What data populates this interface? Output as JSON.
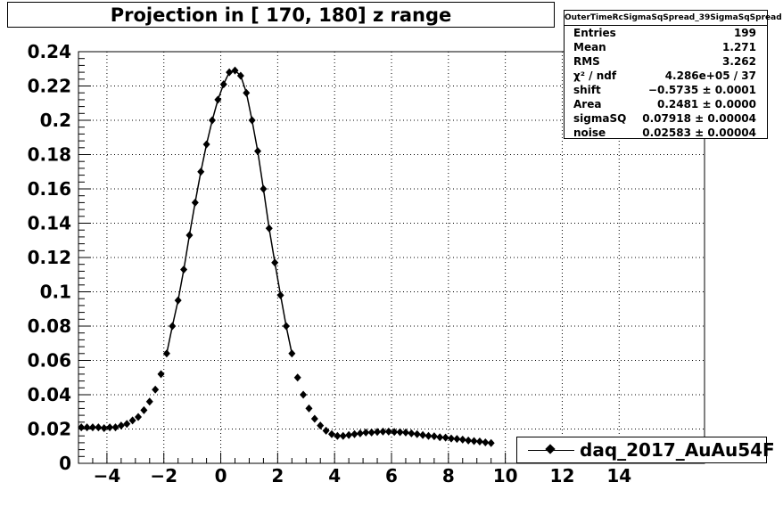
{
  "title": "Projection in [ 170, 180] z range",
  "stats": {
    "name": "OuterTimeRcSigmaSqSpread_39SigmaSqSpread",
    "rows": [
      {
        "label": "Entries",
        "value": "199"
      },
      {
        "label": "Mean",
        "value": "1.271"
      },
      {
        "label": "RMS",
        "value": "3.262"
      },
      {
        "label": "χ² / ndf",
        "value": "4.286e+05 / 37"
      },
      {
        "label": "shift",
        "value": "−0.5735 ± 0.0001"
      },
      {
        "label": "Area",
        "value": "0.2481 ± 0.0000"
      },
      {
        "label": "sigmaSQ",
        "value": "0.07918 ± 0.00004"
      },
      {
        "label": "noise",
        "value": "0.02583 ± 0.00004"
      }
    ]
  },
  "legend": {
    "label": "daq_2017_AuAu54F"
  },
  "chart_data": {
    "type": "scatter",
    "xlim": [
      -5,
      17
    ],
    "ylim": [
      0,
      0.24
    ],
    "x_ticks": [
      "−4",
      "−2",
      "0",
      "2",
      "4",
      "6",
      "8",
      "10",
      "12",
      "14"
    ],
    "x_tick_values": [
      -4,
      -2,
      0,
      2,
      4,
      6,
      8,
      10,
      12,
      14
    ],
    "y_ticks": [
      "0",
      "0.02",
      "0.04",
      "0.06",
      "0.08",
      "0.1",
      "0.12",
      "0.14",
      "0.16",
      "0.18",
      "0.2",
      "0.22",
      "0.24"
    ],
    "y_tick_values": [
      0,
      0.02,
      0.04,
      0.06,
      0.08,
      0.1,
      0.12,
      0.14,
      0.16,
      0.18,
      0.2,
      0.22,
      0.24
    ],
    "grid": true,
    "series": [
      {
        "name": "daq_2017_AuAu54F",
        "x": [
          -4.9,
          -4.7,
          -4.5,
          -4.3,
          -4.1,
          -3.9,
          -3.7,
          -3.5,
          -3.3,
          -3.1,
          -2.9,
          -2.7,
          -2.5,
          -2.3,
          -2.1,
          -1.9,
          -1.7,
          -1.5,
          -1.3,
          -1.1,
          -0.9,
          -0.7,
          -0.5,
          -0.3,
          -0.1,
          0.1,
          0.3,
          0.5,
          0.7,
          0.9,
          1.1,
          1.3,
          1.5,
          1.7,
          1.9,
          2.1,
          2.3,
          2.5,
          2.7,
          2.9,
          3.1,
          3.3,
          3.5,
          3.7,
          3.9,
          4.1,
          4.3,
          4.5,
          4.7,
          4.9,
          5.1,
          5.3,
          5.5,
          5.7,
          5.9,
          6.1,
          6.3,
          6.5,
          6.7,
          6.9,
          7.1,
          7.3,
          7.5,
          7.7,
          7.9,
          8.1,
          8.3,
          8.5,
          8.7,
          8.9,
          9.1,
          9.3,
          9.5
        ],
        "y": [
          0.021,
          0.021,
          0.021,
          0.021,
          0.0205,
          0.021,
          0.021,
          0.022,
          0.023,
          0.025,
          0.027,
          0.031,
          0.036,
          0.043,
          0.052,
          0.064,
          0.08,
          0.095,
          0.113,
          0.133,
          0.152,
          0.17,
          0.186,
          0.2,
          0.212,
          0.221,
          0.228,
          0.229,
          0.226,
          0.216,
          0.2,
          0.182,
          0.16,
          0.137,
          0.117,
          0.098,
          0.08,
          0.064,
          0.05,
          0.04,
          0.032,
          0.026,
          0.022,
          0.019,
          0.017,
          0.016,
          0.016,
          0.0165,
          0.017,
          0.0175,
          0.018,
          0.018,
          0.0183,
          0.0185,
          0.0185,
          0.0183,
          0.0182,
          0.018,
          0.0175,
          0.017,
          0.0165,
          0.016,
          0.0158,
          0.0152,
          0.015,
          0.0145,
          0.0142,
          0.0138,
          0.0133,
          0.013,
          0.0127,
          0.0122,
          0.0118
        ]
      }
    ]
  }
}
